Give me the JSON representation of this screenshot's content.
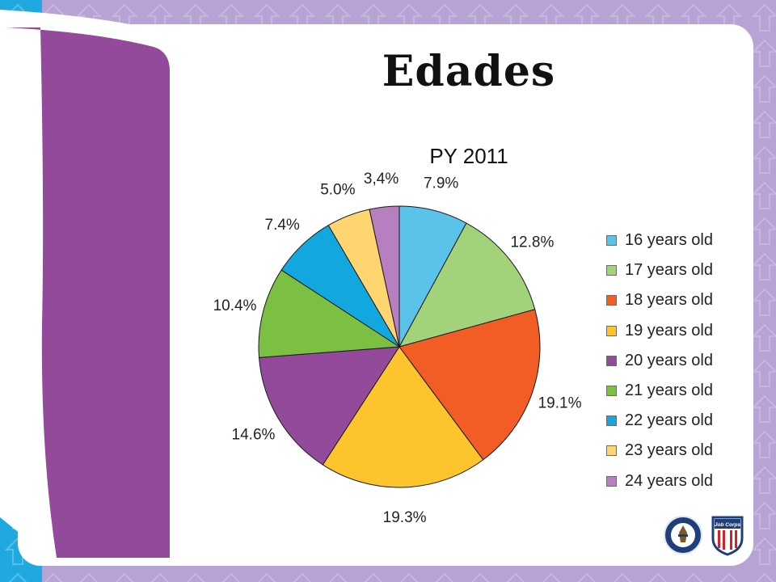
{
  "slide": {
    "title": "Edades"
  },
  "colors": {
    "background_purple": "#b7a3d4",
    "left_strip_blue": "#20a9e1",
    "swoosh_purple": "#944a9b",
    "panel": "#ffffff"
  },
  "logos": {
    "left": "department-of-labor-seal",
    "right": "job-corps-shield",
    "right_text": "Job Corps"
  },
  "chart_data": {
    "type": "pie",
    "title": "PY 2011",
    "start_angle_deg": 0,
    "direction": "clockwise",
    "legend_position": "right",
    "slices": [
      {
        "label": "16 years old",
        "value": 7.9,
        "display": "7.9%",
        "color": "#5bc3ea"
      },
      {
        "label": "17 years old",
        "value": 12.8,
        "display": "12.8%",
        "color": "#a2d27a"
      },
      {
        "label": "18 years old",
        "value": 19.1,
        "display": "19.1%",
        "color": "#f15d24"
      },
      {
        "label": "19 years old",
        "value": 19.3,
        "display": "19.3%",
        "color": "#fec42d"
      },
      {
        "label": "20 years old",
        "value": 14.6,
        "display": "14.6%",
        "color": "#944a9b"
      },
      {
        "label": "21 years old",
        "value": 10.4,
        "display": "10.4%",
        "color": "#7bbf43"
      },
      {
        "label": "22 years old",
        "value": 7.4,
        "display": "7.4%",
        "color": "#12a8df"
      },
      {
        "label": "23 years old",
        "value": 5.0,
        "display": "5.0%",
        "color": "#fed56f"
      },
      {
        "label": "24 years old",
        "value": 3.4,
        "display": "3,4%",
        "color": "#b77fbf"
      }
    ]
  }
}
